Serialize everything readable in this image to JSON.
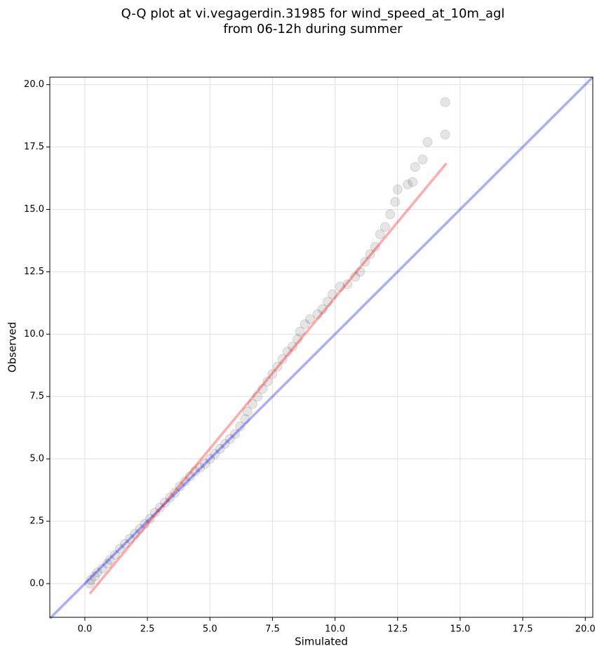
{
  "chart_data": {
    "type": "scatter",
    "title": "Q-Q plot at vi.vegagerdin.31985 for wind_speed_at_10m_agl",
    "subtitle": "from 06-12h during summer",
    "xlabel": "Simulated",
    "ylabel": "Observed",
    "color": "#000000",
    "x": [
      0.2,
      0.25,
      0.4,
      0.5,
      0.7,
      0.9,
      1.0,
      1.2,
      1.4,
      1.6,
      1.8,
      2.0,
      2.2,
      2.4,
      2.6,
      2.8,
      3.0,
      3.2,
      3.4,
      3.6,
      3.8,
      4.0,
      4.2,
      4.4,
      4.6,
      4.8,
      5.0,
      5.2,
      5.4,
      5.6,
      5.8,
      6.0,
      6.2,
      6.4,
      6.5,
      6.7,
      6.9,
      7.1,
      7.3,
      7.5,
      7.7,
      7.9,
      8.1,
      8.3,
      8.5,
      8.6,
      8.8,
      9.0,
      9.3,
      9.5,
      9.7,
      9.9,
      10.2,
      10.5,
      10.8,
      11.0,
      11.2,
      11.4,
      11.6,
      11.8,
      12.0,
      12.2,
      12.4,
      12.5,
      12.9,
      13.1,
      13.2,
      13.5,
      13.7,
      14.4,
      14.4
    ],
    "values": [
      0.0,
      0.15,
      0.3,
      0.45,
      0.6,
      0.8,
      0.95,
      1.15,
      1.4,
      1.6,
      1.8,
      2.0,
      2.2,
      2.4,
      2.6,
      2.85,
      3.05,
      3.25,
      3.45,
      3.65,
      3.9,
      4.1,
      4.3,
      4.5,
      4.65,
      4.8,
      5.0,
      5.2,
      5.4,
      5.6,
      5.8,
      6.0,
      6.3,
      6.6,
      6.9,
      7.2,
      7.5,
      7.8,
      8.1,
      8.4,
      8.7,
      9.0,
      9.3,
      9.5,
      9.8,
      10.1,
      10.4,
      10.6,
      10.8,
      11.0,
      11.3,
      11.6,
      11.9,
      12.0,
      12.3,
      12.5,
      12.9,
      13.2,
      13.5,
      14.0,
      14.3,
      14.8,
      15.3,
      15.8,
      16.0,
      16.1,
      16.7,
      17.0,
      17.7,
      18.0,
      19.3
    ],
    "lines": [
      {
        "color": "#0000ff",
        "x": [
          -1.4,
          20.3
        ],
        "values": [
          -1.4,
          20.3
        ]
      },
      {
        "color": "#ff0000",
        "x": [
          0.2,
          14.45
        ],
        "values": [
          -0.4,
          16.85
        ]
      }
    ],
    "xlim": [
      -1.4,
      20.3
    ],
    "ylim": [
      -1.35,
      20.3
    ],
    "xticks": [
      {
        "value": 0,
        "label": "0.0"
      },
      {
        "value": 2.5,
        "label": "2.5"
      },
      {
        "value": 5,
        "label": "5.0"
      },
      {
        "value": 7.5,
        "label": "7.5"
      },
      {
        "value": 10,
        "label": "10.0"
      },
      {
        "value": 12.5,
        "label": "12.5"
      },
      {
        "value": 15,
        "label": "15.0"
      },
      {
        "value": 17.5,
        "label": "17.5"
      },
      {
        "value": 20,
        "label": "20.0"
      }
    ],
    "yticks": [
      {
        "value": 0,
        "label": "0.0"
      },
      {
        "value": 2.5,
        "label": "2.5"
      },
      {
        "value": 5,
        "label": "5.0"
      },
      {
        "value": 7.5,
        "label": "7.5"
      },
      {
        "value": 10,
        "label": "10.0"
      },
      {
        "value": 12.5,
        "label": "12.5"
      },
      {
        "value": 15,
        "label": "15.0"
      },
      {
        "value": 17.5,
        "label": "17.5"
      },
      {
        "value": 20,
        "label": "20.0"
      }
    ],
    "grid": true
  }
}
